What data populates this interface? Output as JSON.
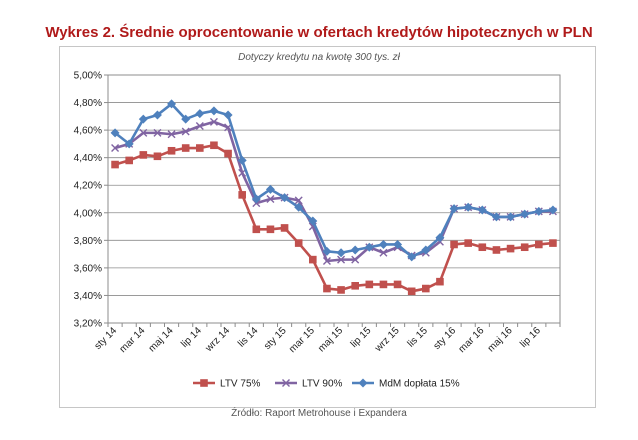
{
  "title": "Wykres 2. Średnie oprocentowanie w ofertach kredytów hipotecznych w PLN",
  "subtitle": "Dotyczy kredytu na kwotę 300 tys. zł",
  "source": "Źródło: Raport Metrohouse i Expandera",
  "chart_data": {
    "type": "line",
    "title": "Wykres 2. Średnie oprocentowanie w ofertach kredytów hipotecznych w PLN",
    "subtitle": "Dotyczy kredytu na kwotę 300 tys. zł",
    "xlabel": "",
    "ylabel": "",
    "ylim": [
      3.2,
      5.0
    ],
    "y_ticks": [
      "3,20%",
      "3,40%",
      "3,60%",
      "3,80%",
      "4,00%",
      "4,20%",
      "4,40%",
      "4,60%",
      "4,80%",
      "5,00%"
    ],
    "x_ticks": [
      "sty 14",
      "mar 14",
      "maj 14",
      "lip 14",
      "wrz 14",
      "lis 14",
      "sty 15",
      "mar 15",
      "maj 15",
      "lip 15",
      "wrz 15",
      "lis 15",
      "sty 16",
      "mar 16",
      "maj 16",
      "lip 16"
    ],
    "categories": [
      "sty 14",
      "lut 14",
      "mar 14",
      "kwi 14",
      "maj 14",
      "cze 14",
      "lip 14",
      "sie 14",
      "wrz 14",
      "paź 14",
      "lis 14",
      "gru 14",
      "sty 15",
      "lut 15",
      "mar 15",
      "kwi 15",
      "maj 15",
      "cze 15",
      "lip 15",
      "sie 15",
      "wrz 15",
      "paź 15",
      "lis 15",
      "gru 15",
      "sty 16",
      "lut 16",
      "mar 16",
      "kwi 16",
      "maj 16",
      "cze 16",
      "lip 16",
      "sie 16"
    ],
    "grid": true,
    "legend_position": "bottom",
    "series": [
      {
        "name": "LTV 75%",
        "color": "#c0504d",
        "marker": "square",
        "values": [
          4.35,
          4.38,
          4.42,
          4.41,
          4.45,
          4.47,
          4.47,
          4.49,
          4.43,
          4.13,
          3.88,
          3.88,
          3.89,
          3.78,
          3.66,
          3.45,
          3.44,
          3.47,
          3.48,
          3.48,
          3.48,
          3.43,
          3.45,
          3.5,
          3.77,
          3.78,
          3.75,
          3.73,
          3.74,
          3.75,
          3.77,
          3.78
        ]
      },
      {
        "name": "LTV 90%",
        "color": "#8064a2",
        "marker": "x",
        "values": [
          4.47,
          4.5,
          4.58,
          4.58,
          4.57,
          4.59,
          4.63,
          4.66,
          4.62,
          4.29,
          4.07,
          4.1,
          4.11,
          4.09,
          3.9,
          3.65,
          3.66,
          3.66,
          3.75,
          3.71,
          3.75,
          3.69,
          3.71,
          3.79,
          4.03,
          4.04,
          4.02,
          3.97,
          3.97,
          3.99,
          4.01,
          4.01
        ]
      },
      {
        "name": "MdM dopłata 15%",
        "color": "#4f81bd",
        "marker": "diamond",
        "values": [
          4.58,
          4.5,
          4.68,
          4.71,
          4.79,
          4.68,
          4.72,
          4.74,
          4.71,
          4.38,
          4.1,
          4.17,
          4.11,
          4.04,
          3.94,
          3.72,
          3.71,
          3.73,
          3.75,
          3.77,
          3.77,
          3.68,
          3.73,
          3.82,
          4.03,
          4.04,
          4.02,
          3.97,
          3.97,
          3.99,
          4.01,
          4.02
        ]
      }
    ]
  }
}
